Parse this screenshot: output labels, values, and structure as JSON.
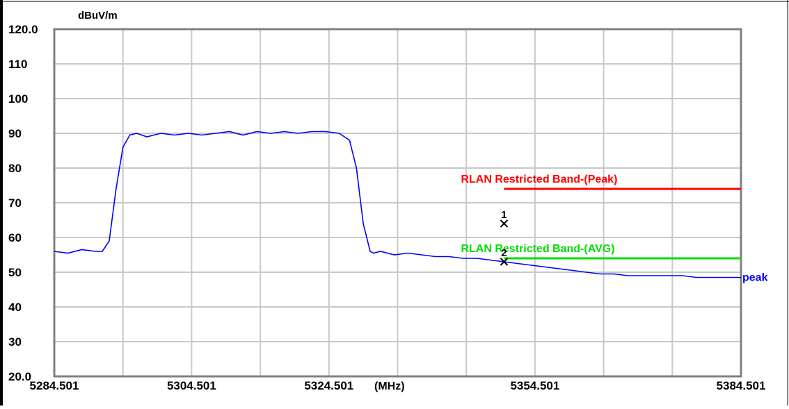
{
  "chart_data": {
    "type": "line",
    "y_unit": "dBuV/m",
    "x_unit": "(MHz)",
    "xlim": [
      5284.501,
      5384.501
    ],
    "ylim": [
      20,
      120
    ],
    "grid": true,
    "x_ticks": [
      "5284.501",
      "5304.501",
      "5324.501",
      "5354.501",
      "5384.501"
    ],
    "x_tick_values": [
      5284.501,
      5304.501,
      5324.501,
      5354.501,
      5384.501
    ],
    "y_ticks": [
      "120.0",
      "110",
      "100",
      "90",
      "80",
      "70",
      "60",
      "50",
      "40",
      "30",
      "20.0"
    ],
    "y_tick_values": [
      120,
      110,
      100,
      90,
      80,
      70,
      60,
      50,
      40,
      30,
      20
    ],
    "series": [
      {
        "name": "peak",
        "color": "#0000ff",
        "x": [
          5284.501,
          5286.5,
          5288.5,
          5290.5,
          5291.5,
          5292.5,
          5293.5,
          5294.5,
          5295.5,
          5296.5,
          5298,
          5300,
          5302,
          5304,
          5306,
          5308,
          5310,
          5312,
          5314,
          5316,
          5318,
          5320,
          5322,
          5324,
          5326,
          5327.5,
          5328.5,
          5329.5,
          5330.5,
          5331,
          5332,
          5334,
          5336,
          5338,
          5340,
          5342,
          5344,
          5346,
          5348,
          5350,
          5352,
          5354,
          5356,
          5358,
          5360,
          5362,
          5364,
          5366,
          5368,
          5370,
          5372,
          5374,
          5376,
          5378,
          5380,
          5382,
          5384.501
        ],
        "values": [
          56,
          55.5,
          56.5,
          56,
          56,
          59,
          74,
          86,
          89.5,
          90,
          89,
          90,
          89.5,
          90,
          89.5,
          90,
          90.5,
          89.5,
          90.5,
          90,
          90.5,
          90,
          90.5,
          90.5,
          90,
          88,
          80,
          64,
          56,
          55.5,
          56,
          55,
          55.5,
          55,
          54.5,
          54.5,
          54,
          54,
          53.5,
          53,
          52.5,
          52,
          51.5,
          51,
          50.5,
          50,
          49.5,
          49.5,
          49,
          49,
          49,
          49,
          49,
          48.5,
          48.5,
          48.5,
          48.5
        ]
      }
    ],
    "limit_lines": [
      {
        "label": "RLAN Restricted Band-(Peak)",
        "color": "#ff0000",
        "value": 74,
        "x_start": 5350
      },
      {
        "label": "RLAN Restricted Band-(AVG)",
        "color": "#00dd00",
        "value": 54,
        "x_start": 5350
      }
    ],
    "markers": [
      {
        "label": "1",
        "x": 5350,
        "y": 64
      },
      {
        "label": "2",
        "x": 5350,
        "y": 53
      }
    ]
  }
}
